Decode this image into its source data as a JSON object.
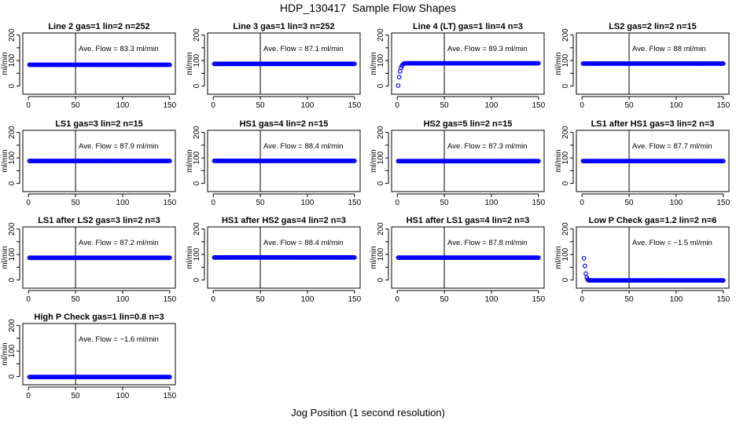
{
  "figure": {
    "title": "HDP_130417  Sample Flow Shapes",
    "xlabel": "Jog Position (1 second resolution)"
  },
  "chart_data": [
    {
      "type": "scatter",
      "title": "Line 2 gas=1 lin=2 n=252",
      "ylabel": "ml/min",
      "annotation": "Ave. Flow =  83.3  ml/min",
      "xlim": [
        0,
        150
      ],
      "ylim": [
        0,
        200
      ],
      "xticks": [
        0,
        50,
        100,
        150
      ],
      "yticks": [
        0,
        100,
        200
      ],
      "vline_x": 50,
      "shape": "flat",
      "level": 83.3,
      "x_range": [
        1,
        150
      ]
    },
    {
      "type": "scatter",
      "title": "Line 3 gas=1 lin=3 n=252",
      "ylabel": "ml/min",
      "annotation": "Ave. Flow =  87.1  ml/min",
      "xlim": [
        0,
        150
      ],
      "ylim": [
        0,
        200
      ],
      "xticks": [
        0,
        50,
        100,
        150
      ],
      "yticks": [
        0,
        100,
        200
      ],
      "vline_x": 50,
      "shape": "flat",
      "level": 87.1,
      "x_range": [
        1,
        150
      ]
    },
    {
      "type": "scatter",
      "title": "Line 4 (LT) gas=1 lin=4 n=3",
      "ylabel": "ml/min",
      "annotation": "Ave. Flow =  89.3  ml/min",
      "xlim": [
        0,
        150
      ],
      "ylim": [
        0,
        200
      ],
      "xticks": [
        0,
        50,
        100,
        150
      ],
      "yticks": [
        0,
        100,
        200
      ],
      "vline_x": 50,
      "shape": "flat",
      "level": 89.3,
      "x_range": [
        8,
        150
      ],
      "points": [
        {
          "x": 1,
          "y": 2
        },
        {
          "x": 2,
          "y": 35
        },
        {
          "x": 3,
          "y": 58
        },
        {
          "x": 4,
          "y": 72
        },
        {
          "x": 5,
          "y": 80
        },
        {
          "x": 6,
          "y": 85
        },
        {
          "x": 7,
          "y": 88
        }
      ]
    },
    {
      "type": "scatter",
      "title": "LS2 gas=2 lin=2 n=15",
      "ylabel": "ml/min",
      "annotation": "Ave. Flow =  88  ml/min",
      "xlim": [
        0,
        150
      ],
      "ylim": [
        0,
        200
      ],
      "xticks": [
        0,
        50,
        100,
        150
      ],
      "yticks": [
        0,
        100,
        200
      ],
      "vline_x": 50,
      "shape": "flat",
      "level": 88,
      "x_range": [
        1,
        150
      ]
    },
    {
      "type": "scatter",
      "title": "LS1 gas=3 lin=2 n=15",
      "ylabel": "ml/min",
      "annotation": "Ave. Flow =  87.9  ml/min",
      "xlim": [
        0,
        150
      ],
      "ylim": [
        0,
        200
      ],
      "xticks": [
        0,
        50,
        100,
        150
      ],
      "yticks": [
        0,
        100,
        200
      ],
      "vline_x": 50,
      "shape": "flat",
      "level": 87.9,
      "x_range": [
        1,
        150
      ]
    },
    {
      "type": "scatter",
      "title": "HS1 gas=4 lin=2 n=15",
      "ylabel": "ml/min",
      "annotation": "Ave. Flow =  88.4  ml/min",
      "xlim": [
        0,
        150
      ],
      "ylim": [
        0,
        200
      ],
      "xticks": [
        0,
        50,
        100,
        150
      ],
      "yticks": [
        0,
        100,
        200
      ],
      "vline_x": 50,
      "shape": "flat",
      "level": 88.4,
      "x_range": [
        1,
        150
      ]
    },
    {
      "type": "scatter",
      "title": "HS2 gas=5 lin=2 n=15",
      "ylabel": "ml/min",
      "annotation": "Ave. Flow =  87.3  ml/min",
      "xlim": [
        0,
        150
      ],
      "ylim": [
        0,
        200
      ],
      "xticks": [
        0,
        50,
        100,
        150
      ],
      "yticks": [
        0,
        100,
        200
      ],
      "vline_x": 50,
      "shape": "flat",
      "level": 87.3,
      "x_range": [
        1,
        150
      ]
    },
    {
      "type": "scatter",
      "title": "LS1 after HS1 gas=3 lin=2 n=3",
      "ylabel": "ml/min",
      "annotation": "Ave. Flow =  87.7  ml/min",
      "xlim": [
        0,
        150
      ],
      "ylim": [
        0,
        200
      ],
      "xticks": [
        0,
        50,
        100,
        150
      ],
      "yticks": [
        0,
        100,
        200
      ],
      "vline_x": 50,
      "shape": "flat",
      "level": 87.7,
      "x_range": [
        1,
        150
      ]
    },
    {
      "type": "scatter",
      "title": "LS1 after LS2 gas=3 lin=2 n=3",
      "ylabel": "ml/min",
      "annotation": "Ave. Flow =  87.2  ml/min",
      "xlim": [
        0,
        150
      ],
      "ylim": [
        0,
        200
      ],
      "xticks": [
        0,
        50,
        100,
        150
      ],
      "yticks": [
        0,
        100,
        200
      ],
      "vline_x": 50,
      "shape": "flat",
      "level": 87.2,
      "x_range": [
        1,
        150
      ]
    },
    {
      "type": "scatter",
      "title": "HS1 after HS2 gas=4 lin=2 n=3",
      "ylabel": "ml/min",
      "annotation": "Ave. Flow =  88.4  ml/min",
      "xlim": [
        0,
        150
      ],
      "ylim": [
        0,
        200
      ],
      "xticks": [
        0,
        50,
        100,
        150
      ],
      "yticks": [
        0,
        100,
        200
      ],
      "vline_x": 50,
      "shape": "flat",
      "level": 88.4,
      "x_range": [
        1,
        150
      ]
    },
    {
      "type": "scatter",
      "title": "HS1 after LS1 gas=4 lin=2 n=3",
      "ylabel": "ml/min",
      "annotation": "Ave. Flow =  87.8  ml/min",
      "xlim": [
        0,
        150
      ],
      "ylim": [
        0,
        200
      ],
      "xticks": [
        0,
        50,
        100,
        150
      ],
      "yticks": [
        0,
        100,
        200
      ],
      "vline_x": 50,
      "shape": "flat",
      "level": 87.8,
      "x_range": [
        1,
        150
      ]
    },
    {
      "type": "scatter",
      "title": "Low P Check gas=1.2 lin=2 n=6",
      "ylabel": "ml/min",
      "annotation": "Ave. Flow =  −1.5  ml/min",
      "xlim": [
        0,
        150
      ],
      "ylim": [
        0,
        200
      ],
      "xticks": [
        0,
        50,
        100,
        150
      ],
      "yticks": [
        0,
        100,
        200
      ],
      "vline_x": 50,
      "shape": "flat",
      "level": -1.5,
      "x_range": [
        7,
        150
      ],
      "points": [
        {
          "x": 2,
          "y": 85
        },
        {
          "x": 3,
          "y": 55
        },
        {
          "x": 4,
          "y": 25
        },
        {
          "x": 5,
          "y": 10
        },
        {
          "x": 6,
          "y": 2
        }
      ]
    },
    {
      "type": "scatter",
      "title": "High P Check gas=1 lin=0.8 n=3",
      "ylabel": "ml/min",
      "annotation": "Ave. Flow =  −1.6  ml/min",
      "xlim": [
        0,
        150
      ],
      "ylim": [
        0,
        200
      ],
      "xticks": [
        0,
        50,
        100,
        150
      ],
      "yticks": [
        0,
        100,
        200
      ],
      "vline_x": 50,
      "shape": "flat",
      "level": -1.6,
      "x_range": [
        1,
        150
      ]
    }
  ],
  "colors": {
    "points": "#0000ff",
    "axes": "#000000"
  }
}
